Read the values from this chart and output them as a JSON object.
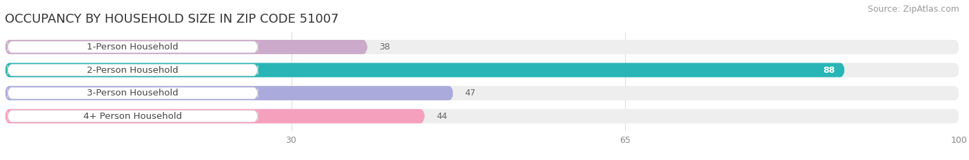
{
  "title": "OCCUPANCY BY HOUSEHOLD SIZE IN ZIP CODE 51007",
  "source": "Source: ZipAtlas.com",
  "categories": [
    "1-Person Household",
    "2-Person Household",
    "3-Person Household",
    "4+ Person Household"
  ],
  "values": [
    38,
    88,
    47,
    44
  ],
  "bar_colors": [
    "#ccaacb",
    "#29b5b5",
    "#aaaadd",
    "#f5a0bc"
  ],
  "bar_label_colors": [
    "#555555",
    "#ffffff",
    "#555555",
    "#555555"
  ],
  "xlim": [
    0,
    100
  ],
  "xticks": [
    30,
    65,
    100
  ],
  "background_color": "#ffffff",
  "bar_bg_color": "#eeeeee",
  "title_fontsize": 13,
  "source_fontsize": 9,
  "label_fontsize": 9.5,
  "value_fontsize": 9,
  "tick_fontsize": 9,
  "bar_height": 0.62,
  "figsize": [
    14.06,
    2.33
  ],
  "dpi": 100
}
